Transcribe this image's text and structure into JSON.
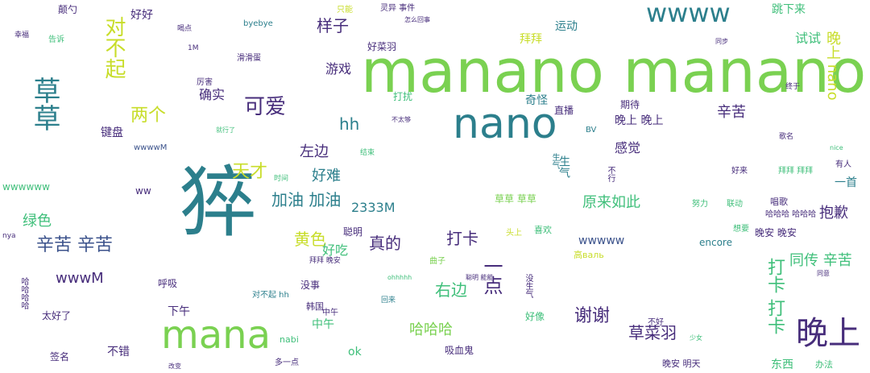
{
  "palette": {
    "teal": "#2c7f8c",
    "green": "#7ad151",
    "lime": "#c8dd2a",
    "purple": "#472d7b",
    "mint": "#3fbf7a",
    "blue": "#3b528b"
  },
  "words": [
    {
      "t": "manano manano"
    },
    {
      "t": "nano"
    },
    {
      "t": "mana"
    },
    {
      "t": "猝"
    },
    {
      "t": "wwww"
    },
    {
      "t": "晚上"
    },
    {
      "t": "草草"
    },
    {
      "t": "对不起"
    },
    {
      "t": "可爱"
    },
    {
      "t": "两个"
    },
    {
      "t": "好好"
    },
    {
      "t": "样子"
    },
    {
      "t": "游戏"
    },
    {
      "t": "hh"
    },
    {
      "t": "天才"
    },
    {
      "t": "加油 加油"
    },
    {
      "t": "好难"
    },
    {
      "t": "左边"
    },
    {
      "t": "确实"
    },
    {
      "t": "键盘"
    },
    {
      "t": "辛苦 辛苦"
    },
    {
      "t": "绿色"
    },
    {
      "t": "wwwM"
    },
    {
      "t": "wwwwww"
    },
    {
      "t": "wwwwM"
    },
    {
      "t": "黄色"
    },
    {
      "t": "真的"
    },
    {
      "t": "好吃"
    },
    {
      "t": "2333M"
    },
    {
      "t": "打卡"
    },
    {
      "t": "右边"
    },
    {
      "t": "一点"
    },
    {
      "t": "哈哈哈"
    },
    {
      "t": "中午"
    },
    {
      "t": "谢谢"
    },
    {
      "t": "草菜羽"
    },
    {
      "t": "感觉"
    },
    {
      "t": "原来如此"
    },
    {
      "t": "wwwww"
    },
    {
      "t": "晚上 晚上"
    },
    {
      "t": "辛苦"
    },
    {
      "t": "奇怪"
    },
    {
      "t": "拜拜"
    },
    {
      "t": "运动"
    },
    {
      "t": "跳下来"
    },
    {
      "t": "试试"
    },
    {
      "t": "晚上 nano"
    },
    {
      "t": "抱歉"
    },
    {
      "t": "同传 辛苦"
    },
    {
      "t": "打卡 打卡"
    },
    {
      "t": "晚安 晚安"
    },
    {
      "t": "encore"
    },
    {
      "t": "一首"
    },
    {
      "t": "草草 草草"
    },
    {
      "t": "好菜羽"
    },
    {
      "t": "打扰"
    },
    {
      "t": "直播"
    },
    {
      "t": "期待"
    },
    {
      "t": "生气"
    },
    {
      "t": "ok"
    },
    {
      "t": "不错"
    },
    {
      "t": "下午"
    },
    {
      "t": "呼吸"
    },
    {
      "t": "没事"
    },
    {
      "t": "韩国"
    },
    {
      "t": "太好了"
    },
    {
      "t": "签名"
    },
    {
      "t": "聪明"
    },
    {
      "t": "吸血鬼"
    },
    {
      "t": "好像"
    },
    {
      "t": "高валь"
    },
    {
      "t": "喜欢"
    },
    {
      "t": "东西"
    },
    {
      "t": "办法"
    },
    {
      "t": "晚安 明天"
    },
    {
      "t": "颠勺"
    },
    {
      "t": "ww"
    },
    {
      "t": "nabi"
    },
    {
      "t": "唱歌"
    },
    {
      "t": "好来"
    },
    {
      "t": "拜拜 拜拜"
    },
    {
      "t": "头上"
    },
    {
      "t": "滑滑蛋"
    },
    {
      "t": "厉害"
    },
    {
      "t": "曲子"
    },
    {
      "t": "没生气"
    },
    {
      "t": "生气"
    },
    {
      "t": "拜拜 晚安"
    },
    {
      "t": "哈哈哈哈"
    },
    {
      "t": "哈哈哈 哈哈哈"
    },
    {
      "t": "不好"
    },
    {
      "t": "结束"
    },
    {
      "t": "时间"
    },
    {
      "t": "幸福"
    },
    {
      "t": "告诉"
    },
    {
      "t": "byebye"
    },
    {
      "t": "灵异 事件"
    },
    {
      "t": "怎么回事"
    },
    {
      "t": "只能"
    },
    {
      "t": "喝点"
    },
    {
      "t": "1M"
    },
    {
      "t": "nya"
    },
    {
      "t": "BV"
    },
    {
      "t": "不行"
    },
    {
      "t": "有人"
    },
    {
      "t": "同步"
    },
    {
      "t": "终于"
    },
    {
      "t": "歌名"
    },
    {
      "t": "对不起 hh"
    },
    {
      "t": "中午"
    },
    {
      "t": "努力"
    },
    {
      "t": "联动"
    },
    {
      "t": "想要"
    },
    {
      "t": "回来"
    },
    {
      "t": "nice"
    },
    {
      "t": "不太够"
    },
    {
      "t": "同意"
    },
    {
      "t": "就行了"
    },
    {
      "t": "ohhhhh"
    },
    {
      "t": "聪明 能能"
    },
    {
      "t": "少女"
    },
    {
      "t": "多一点"
    },
    {
      "t": "改变"
    }
  ]
}
